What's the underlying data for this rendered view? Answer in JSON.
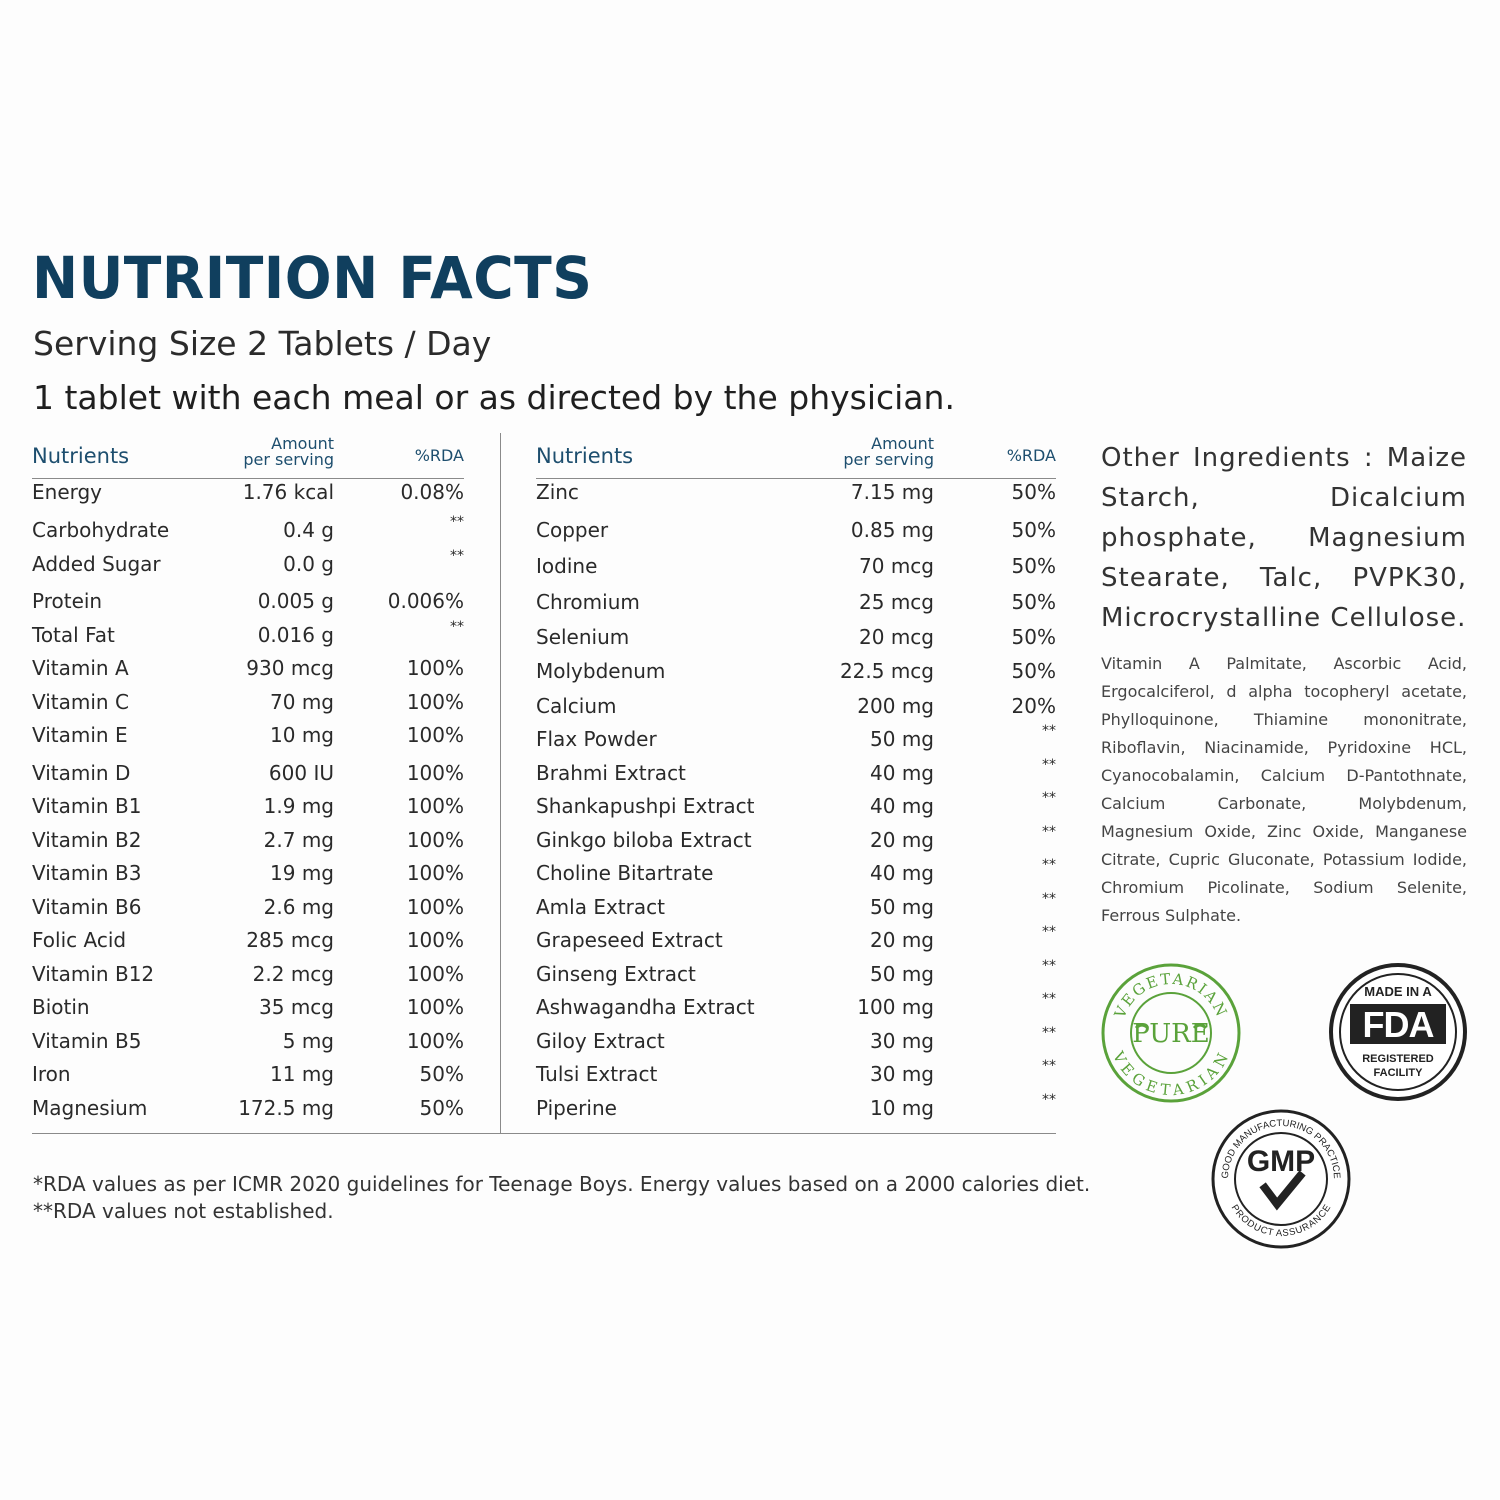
{
  "title": "NUTRITION FACTS",
  "serving": "Serving Size 2 Tablets / Day",
  "directions": "1 tablet with each meal or as directed by the physician.",
  "headers": {
    "nutrients": "Nutrients",
    "amount_line1": "Amount",
    "amount_line2": "per serving",
    "rda": "%RDA"
  },
  "left_rows": [
    {
      "name": "Energy",
      "amount": "1.76 kcal",
      "rda": "0.08%"
    },
    {
      "name": "Carbohydrate",
      "amount": "0.4 g",
      "rda": "**"
    },
    {
      "name": "Added Sugar",
      "amount": "0.0 g",
      "rda": "**"
    },
    {
      "name": "Protein",
      "amount": "0.005 g",
      "rda": "0.006%"
    },
    {
      "name": "Total Fat",
      "amount": "0.016 g",
      "rda": "**"
    },
    {
      "name": "Vitamin A",
      "amount": "930 mcg",
      "rda": "100%"
    },
    {
      "name": "Vitamin C",
      "amount": "70 mg",
      "rda": "100%"
    },
    {
      "name": "Vitamin E",
      "amount": "10 mg",
      "rda": "100%"
    },
    {
      "name": "Vitamin D",
      "amount": "600 IU",
      "rda": "100%"
    },
    {
      "name": "Vitamin B1",
      "amount": "1.9 mg",
      "rda": "100%"
    },
    {
      "name": "Vitamin B2",
      "amount": "2.7 mg",
      "rda": "100%"
    },
    {
      "name": "Vitamin B3",
      "amount": "19 mg",
      "rda": "100%"
    },
    {
      "name": "Vitamin B6",
      "amount": "2.6 mg",
      "rda": "100%"
    },
    {
      "name": "Folic Acid",
      "amount": "285 mcg",
      "rda": "100%"
    },
    {
      "name": "Vitamin B12",
      "amount": "2.2 mcg",
      "rda": "100%"
    },
    {
      "name": "Biotin",
      "amount": "35 mcg",
      "rda": "100%"
    },
    {
      "name": "Vitamin B5",
      "amount": "5 mg",
      "rda": "100%"
    },
    {
      "name": "Iron",
      "amount": "11 mg",
      "rda": "50%"
    },
    {
      "name": "Magnesium",
      "amount": "172.5 mg",
      "rda": "50%"
    }
  ],
  "right_rows": [
    {
      "name": "Zinc",
      "amount": "7.15 mg",
      "rda": "50%"
    },
    {
      "name": "Copper",
      "amount": "0.85 mg",
      "rda": "50%"
    },
    {
      "name": "Iodine",
      "amount": "70 mcg",
      "rda": "50%"
    },
    {
      "name": "Chromium",
      "amount": "25 mcg",
      "rda": "50%"
    },
    {
      "name": "Selenium",
      "amount": "20 mcg",
      "rda": "50%"
    },
    {
      "name": "Molybdenum",
      "amount": "22.5 mcg",
      "rda": "50%"
    },
    {
      "name": "Calcium",
      "amount": "200 mg",
      "rda": "20%"
    },
    {
      "name": "Flax Powder",
      "amount": "50 mg",
      "rda": "**"
    },
    {
      "name": "Brahmi Extract",
      "amount": "40 mg",
      "rda": "**"
    },
    {
      "name": "Shankapushpi Extract",
      "amount": "40 mg",
      "rda": "**"
    },
    {
      "name": "Ginkgo biloba Extract",
      "amount": "20 mg",
      "rda": "**"
    },
    {
      "name": "Choline Bitartrate",
      "amount": "40 mg",
      "rda": "**"
    },
    {
      "name": "Amla Extract",
      "amount": "50 mg",
      "rda": "**"
    },
    {
      "name": "Grapeseed Extract",
      "amount": "20 mg",
      "rda": "**"
    },
    {
      "name": "Ginseng Extract",
      "amount": "50 mg",
      "rda": "**"
    },
    {
      "name": "Ashwagandha Extract",
      "amount": "100 mg",
      "rda": "**"
    },
    {
      "name": "Giloy Extract",
      "amount": "30 mg",
      "rda": "**"
    },
    {
      "name": "Tulsi Extract",
      "amount": "30 mg",
      "rda": "**"
    },
    {
      "name": "Piperine",
      "amount": "10 mg",
      "rda": "**"
    }
  ],
  "footnotes": [
    "*RDA values as per ICMR 2020 guidelines for Teenage Boys. Energy values based on a 2000 calories diet.",
    "**RDA values not established."
  ],
  "other_ingredients": "Other Ingredients : Maize Starch, Dicalcium phosphate, Magnesium Stearate, Talc, PVPK30, Microcrystalline Cellulose.",
  "vitamin_forms": "Vitamin A Palmitate, Ascorbic Acid, Ergocalciferol, d alpha tocopheryl acetate, Phylloquinone, Thiamine mononitrate, Riboflavin, Niacinamide, Pyridoxine HCL, Cyanocobalamin, Calcium D-Pantothnate, Calcium Carbonate, Molybdenum, Magnesium Oxide, Zinc Oxide, Manganese Citrate, Cupric Gluconate, Potassium Iodide, Chromium Picolinate, Sodium Selenite, Ferrous Sulphate.",
  "badges": {
    "vegetarian": {
      "top_text": "VEGETARIAN",
      "center": "PURE",
      "bottom_text": "VEGETARIAN",
      "color": "#5aa23a"
    },
    "fda": {
      "line1": "MADE IN A",
      "logo": "FDA",
      "line2": "REGISTERED",
      "line3": "FACILITY"
    },
    "gmp": {
      "ring_top": "GOOD MANUFACTURING PRACTICE",
      "ring_bottom": "PRODUCT ASSURANCE",
      "center": "GMP"
    }
  },
  "colors": {
    "title": "#103f5e",
    "header": "#1d4e6e",
    "text": "#2a2a2a"
  }
}
